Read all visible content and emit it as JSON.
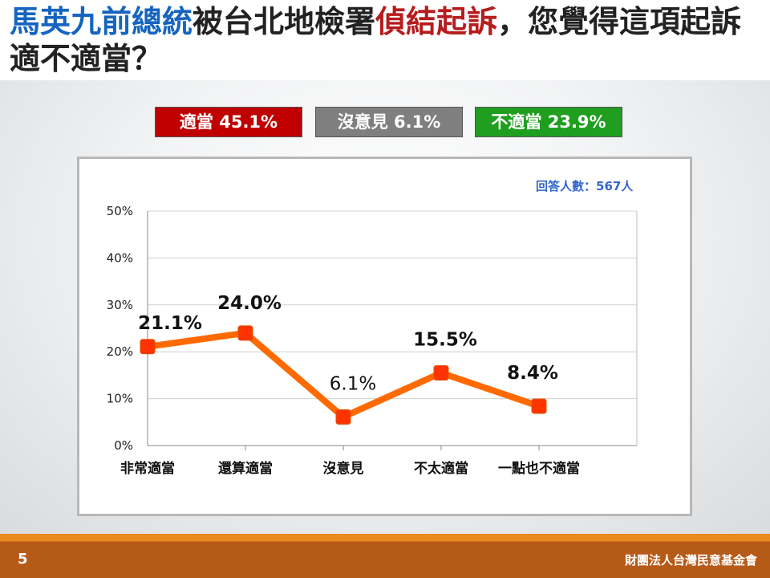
{
  "slide": {
    "title_parts": [
      {
        "text": "馬英九前總統",
        "color": "blue"
      },
      {
        "text": "被台北地檢署",
        "color": "black"
      },
      {
        "text": "偵結起訴",
        "color": "red"
      },
      {
        "text": "，您覺得這項起訴適不適當？",
        "color": "black"
      }
    ],
    "summary": {
      "agree": "適當 45.1%",
      "no_opinion": "沒意見 6.1%",
      "disagree": "不適當 23.9%"
    },
    "respondents": "回答人數：567人",
    "page_number": "5",
    "organization": "財團法人台灣民意基金會",
    "colors": {
      "title_blue": "#1565c0",
      "title_red": "#b71c1c",
      "agree": "#c00000",
      "no_opinion": "#7f7f7f",
      "disagree": "#1f9e1f",
      "line": "#ff6a00",
      "marker": "#ff3300",
      "footer": "#b65a18"
    }
  },
  "chart_data": {
    "type": "line",
    "categories": [
      "非常適當",
      "還算適當",
      "沒意見",
      "不太適當",
      "一點也不適當"
    ],
    "series": [
      {
        "values": [
          21.1,
          24.0,
          6.1,
          15.5,
          8.4
        ]
      }
    ],
    "data_labels": [
      "21.1%",
      "24.0%",
      "6.1%",
      "15.5%",
      "8.4%"
    ],
    "yticks": [
      "0%",
      "10%",
      "20%",
      "30%",
      "40%",
      "50%"
    ],
    "ylim": [
      0,
      50
    ],
    "grid": true,
    "legend": "none"
  }
}
